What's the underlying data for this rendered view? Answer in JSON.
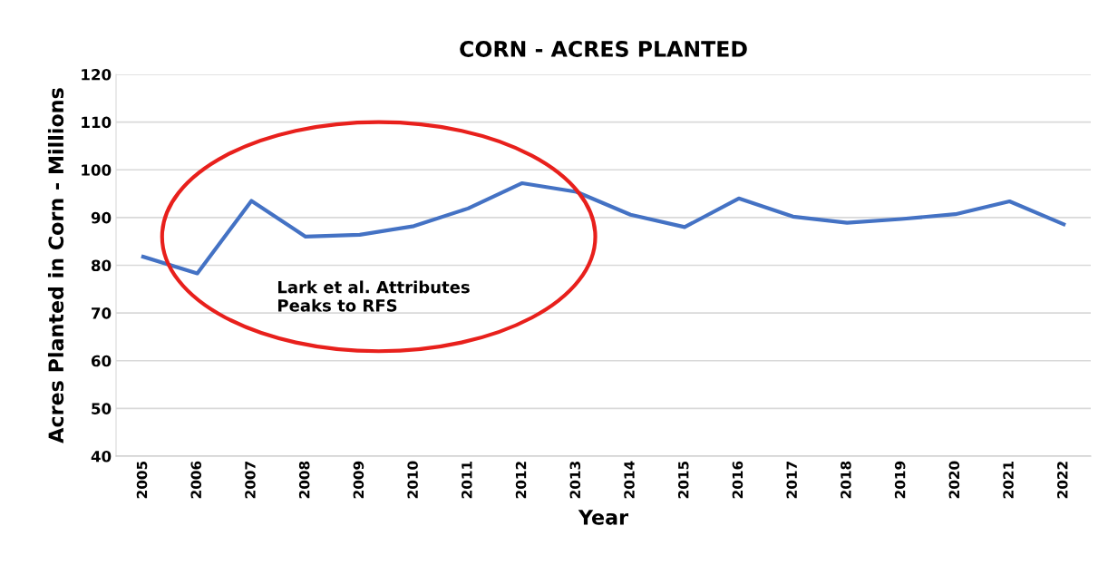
{
  "chart_data": {
    "type": "line",
    "title": "CORN - ACRES PLANTED",
    "xlabel": "Year",
    "ylabel": "Acres Planted in Corn - Millions",
    "categories": [
      "2005",
      "2006",
      "2007",
      "2008",
      "2009",
      "2010",
      "2011",
      "2012",
      "2013",
      "2014",
      "2015",
      "2016",
      "2017",
      "2018",
      "2019",
      "2020",
      "2021",
      "2022"
    ],
    "series": [
      {
        "color": "#4472c4",
        "values": [
          81.8,
          78.3,
          93.5,
          86.0,
          86.4,
          88.2,
          91.9,
          97.2,
          95.4,
          90.6,
          88.0,
          94.0,
          90.2,
          88.9,
          89.7,
          90.7,
          93.4,
          88.6
        ]
      }
    ],
    "ylim": [
      40,
      120
    ],
    "yticks": [
      40,
      50,
      60,
      70,
      80,
      90,
      100,
      110,
      120
    ],
    "grid": "y",
    "marker": "none",
    "line_style": "solid",
    "annotations": [
      "Lark et al. Attributes\nPeaks to RFS"
    ]
  }
}
